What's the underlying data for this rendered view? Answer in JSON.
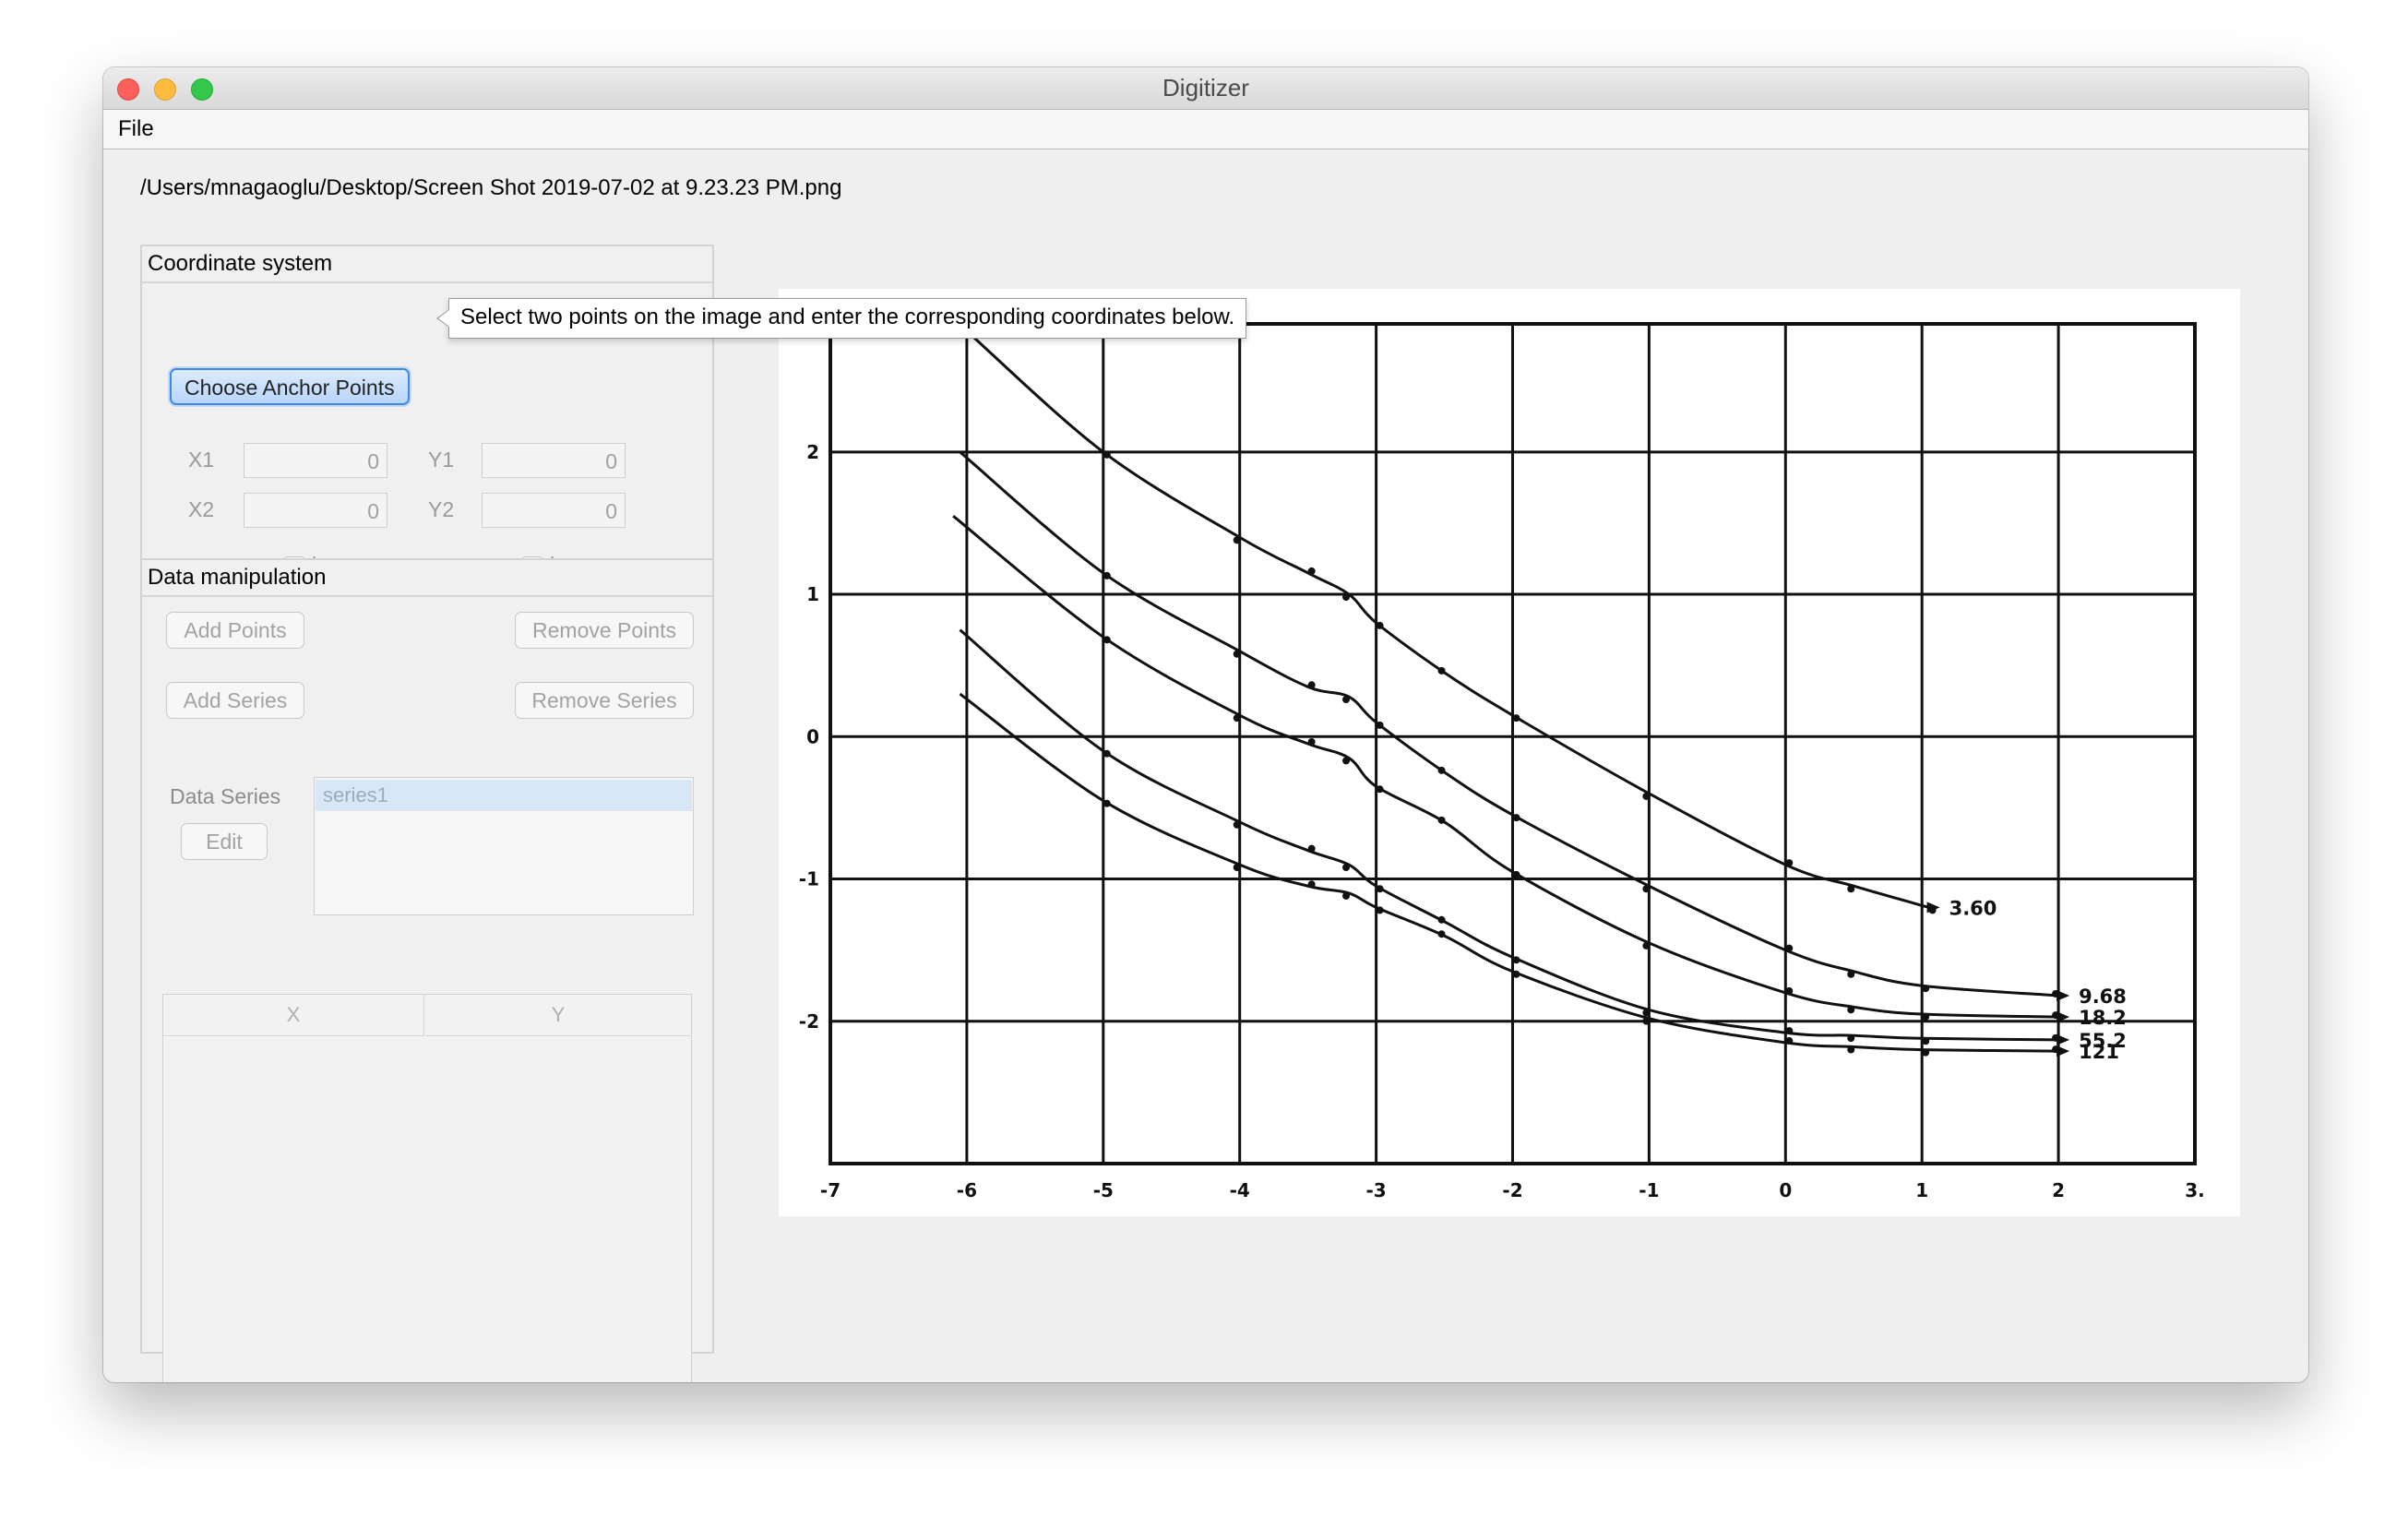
{
  "window": {
    "title": "Digitizer"
  },
  "menu": {
    "file": "File"
  },
  "file_path": "/Users/mnagaoglu/Desktop/Screen Shot 2019-07-02 at 9.23.23 PM.png",
  "coordinate_system": {
    "title": "Coordinate system",
    "choose_anchor_label": "Choose Anchor Points",
    "tooltip": "Select two points on the image and enter the corresponding coordinates below.",
    "x1_label": "X1",
    "x1_value": "0",
    "y1_label": "Y1",
    "y1_value": "0",
    "x2_label": "X2",
    "x2_value": "0",
    "y2_label": "Y2",
    "y2_value": "0",
    "x_log_label": "log",
    "y_log_label": "log"
  },
  "data_manipulation": {
    "title": "Data manipulation",
    "add_points": "Add Points",
    "remove_points": "Remove Points",
    "add_series": "Add Series",
    "remove_series": "Remove Series",
    "data_series_label": "Data Series",
    "edit_label": "Edit",
    "series": [
      "series1"
    ],
    "table_columns": [
      "X",
      "Y"
    ]
  },
  "chart_data": {
    "type": "line",
    "title": "",
    "xlabel": "",
    "ylabel": "",
    "xlim": [
      -7,
      3
    ],
    "ylim": [
      -3,
      2.9
    ],
    "grid": true,
    "x_tick_labels": [
      "-7",
      "-6",
      "-5",
      "-4",
      "-3",
      "-2",
      "-1",
      "0",
      "1",
      "2",
      "3."
    ],
    "y_tick_labels": [
      "2",
      "1",
      "0",
      "-1",
      "-2"
    ],
    "series": [
      {
        "name": "3.60",
        "x": [
          -6,
          -5,
          -4,
          -3.5,
          -3.2,
          -3,
          -2.5,
          -2,
          -1,
          0,
          0.5,
          1.05
        ],
        "y": [
          2.85,
          2.0,
          1.4,
          1.15,
          1.0,
          0.8,
          0.45,
          0.15,
          -0.4,
          -0.9,
          -1.05,
          -1.2
        ]
      },
      {
        "name": "9.68",
        "x": [
          -6.05,
          -5,
          -4,
          -3.5,
          -3.2,
          -3,
          -2.5,
          -2,
          -1,
          0,
          0.5,
          1,
          2
        ],
        "y": [
          2.0,
          1.15,
          0.6,
          0.35,
          0.28,
          0.1,
          -0.25,
          -0.55,
          -1.05,
          -1.5,
          -1.65,
          -1.75,
          -1.82
        ]
      },
      {
        "name": "18.2",
        "x": [
          -6.1,
          -5,
          -4,
          -3.5,
          -3.2,
          -3,
          -2.5,
          -2,
          -1,
          0,
          0.5,
          1,
          2
        ],
        "y": [
          1.55,
          0.7,
          0.15,
          -0.05,
          -0.15,
          -0.35,
          -0.6,
          -0.95,
          -1.45,
          -1.8,
          -1.9,
          -1.95,
          -1.97
        ]
      },
      {
        "name": "55.2",
        "x": [
          -6.05,
          -5,
          -4,
          -3.5,
          -3.2,
          -3,
          -2.5,
          -2,
          -1,
          0,
          0.5,
          1,
          2
        ],
        "y": [
          0.75,
          -0.1,
          -0.6,
          -0.8,
          -0.9,
          -1.05,
          -1.3,
          -1.55,
          -1.92,
          -2.08,
          -2.1,
          -2.12,
          -2.13
        ]
      },
      {
        "name": "121",
        "x": [
          -6.05,
          -5,
          -4,
          -3.5,
          -3.2,
          -3,
          -2.5,
          -2,
          -1,
          0,
          0.5,
          1,
          2
        ],
        "y": [
          0.3,
          -0.45,
          -0.9,
          -1.05,
          -1.1,
          -1.2,
          -1.4,
          -1.65,
          -1.98,
          -2.15,
          -2.18,
          -2.2,
          -2.21
        ]
      }
    ]
  }
}
